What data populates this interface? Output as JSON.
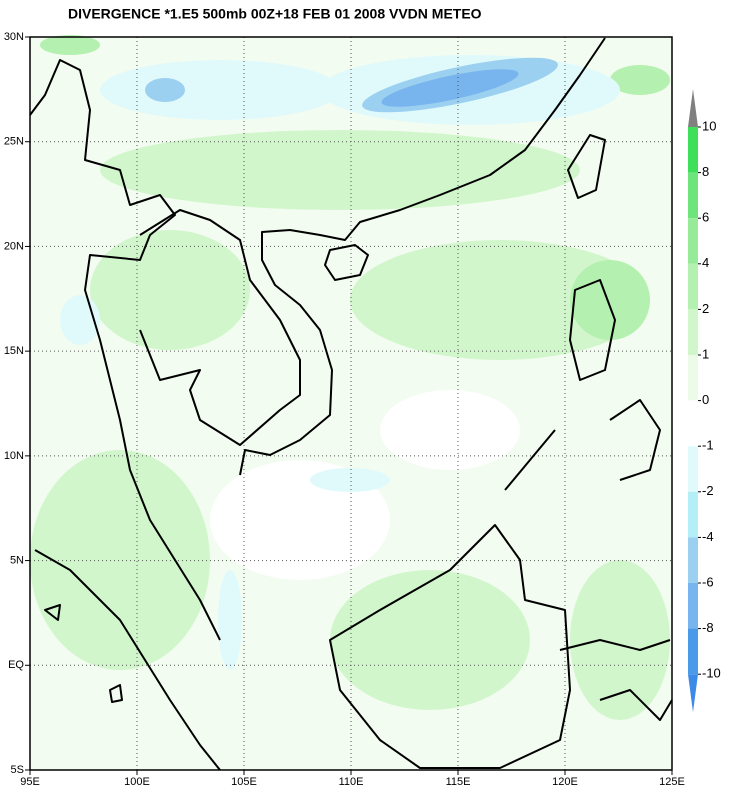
{
  "map": {
    "title": "DIVERGENCE *1.E5 500mb 00Z+18 FEB 01 2008 VVDN METEO",
    "xlim": [
      95,
      125
    ],
    "ylim": [
      -5,
      30
    ],
    "xticks": [
      {
        "value": 95,
        "label": "95E"
      },
      {
        "value": 100,
        "label": "100E"
      },
      {
        "value": 105,
        "label": "105E"
      },
      {
        "value": 110,
        "label": "110E"
      },
      {
        "value": 115,
        "label": "115E"
      },
      {
        "value": 120,
        "label": "120E"
      },
      {
        "value": 125,
        "label": "125E"
      }
    ],
    "yticks": [
      {
        "value": -5,
        "label": "5S"
      },
      {
        "value": 0,
        "label": "EQ"
      },
      {
        "value": 5,
        "label": "5N"
      },
      {
        "value": 10,
        "label": "10N"
      },
      {
        "value": 15,
        "label": "15N"
      },
      {
        "value": 20,
        "label": "20N"
      },
      {
        "value": 25,
        "label": "25N"
      },
      {
        "value": 30,
        "label": "30N"
      }
    ],
    "grid": true,
    "colorbar": {
      "levels": [
        10,
        8,
        6,
        4,
        2,
        1,
        0,
        -1,
        -2,
        -4,
        -6,
        -8,
        -10
      ],
      "colors": [
        "#808080",
        "#3ee05a",
        "#6ee47c",
        "#96ea98",
        "#b4f0b0",
        "#d2f6cc",
        "#ebfbe8",
        "#ffffff",
        "#e0fafc",
        "#b4eef6",
        "#9cd0f0",
        "#78b4ee",
        "#4a9aea",
        "#3c8ae8"
      ]
    }
  }
}
